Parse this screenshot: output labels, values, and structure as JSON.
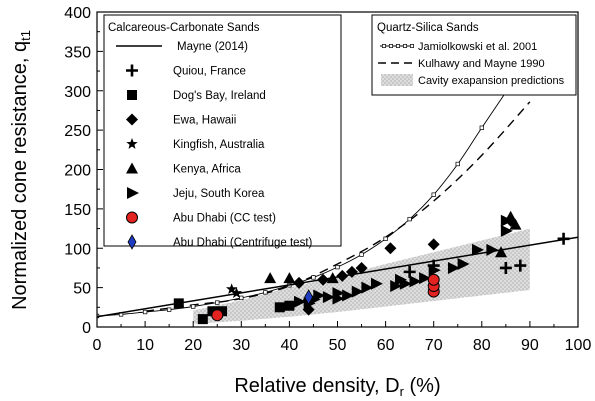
{
  "chart_data": {
    "type": "scatter",
    "xlabel": "Relative density, D",
    "xlabel_sub": "r",
    "xlabel_unit": " (%)",
    "ylabel": "Normalized cone resistance, q",
    "ylabel_sub": "t1",
    "xlim": [
      0,
      100
    ],
    "ylim": [
      0,
      400
    ],
    "xticks": [
      0,
      10,
      20,
      30,
      40,
      50,
      60,
      70,
      80,
      90,
      100
    ],
    "yticks": [
      0,
      50,
      100,
      150,
      200,
      250,
      300,
      350,
      400
    ],
    "legend_left": {
      "title": "Calcareous-Carbonate Sands",
      "entries": [
        {
          "key": "mayne",
          "label": "Mayne (2014)"
        },
        {
          "key": "quiou",
          "label": "Quiou, France"
        },
        {
          "key": "dogs_bay",
          "label": "Dog's Bay, Ireland"
        },
        {
          "key": "ewa",
          "label": "Ewa, Hawaii"
        },
        {
          "key": "kingfish",
          "label": "Kingfish, Australia"
        },
        {
          "key": "kenya",
          "label": "Kenya, Africa"
        },
        {
          "key": "jeju",
          "label": "Jeju, South Korea"
        },
        {
          "key": "abu_cc",
          "label": "Abu Dhabi (CC test)"
        },
        {
          "key": "abu_cent",
          "label": "Abu Dhabi (Centrifuge test)"
        }
      ]
    },
    "legend_right": {
      "title": "Quartz-Silica Sands",
      "entries": [
        {
          "key": "jamiolkowski",
          "label": "Jamiolkowski et al. 2001"
        },
        {
          "key": "kulhawy",
          "label": "Kulhawy and Mayne 1990"
        },
        {
          "key": "cavity",
          "label": "Cavity exapansion predictions"
        }
      ]
    },
    "curves": {
      "mayne": {
        "x": [
          0,
          100
        ],
        "y": [
          13,
          114
        ]
      },
      "jamiolkowski": {
        "x": [
          0,
          5,
          10,
          15,
          20,
          25,
          30,
          35,
          40,
          45,
          50,
          55,
          60,
          65,
          70,
          75,
          80,
          85
        ],
        "y": [
          14,
          16,
          19,
          22,
          26,
          31,
          37,
          44,
          53,
          63,
          76,
          92,
          112,
          137,
          168,
          207,
          253,
          298
        ]
      },
      "kulhawy": {
        "x": [
          10,
          20,
          30,
          40,
          50,
          60,
          70,
          80,
          90
        ],
        "y": [
          20,
          28,
          36,
          52,
          80,
          114,
          160,
          218,
          286
        ]
      },
      "cavity_band": {
        "x": [
          20,
          30,
          40,
          50,
          60,
          70,
          80,
          90
        ],
        "upper": [
          21,
          34,
          50,
          64,
          80,
          95,
          110,
          125
        ],
        "lower": [
          4,
          8,
          13,
          19,
          26,
          33,
          40,
          47
        ]
      }
    },
    "series": [
      {
        "key": "quiou",
        "name": "Quiou, France",
        "marker": "plus",
        "color": "#000000",
        "points": [
          [
            70,
            78
          ],
          [
            85,
            75
          ],
          [
            88,
            78
          ],
          [
            97,
            112
          ],
          [
            65,
            70
          ]
        ]
      },
      {
        "key": "dogs_bay",
        "name": "Dog's Bay, Ireland",
        "marker": "square",
        "color": "#000000",
        "points": [
          [
            17,
            30
          ],
          [
            22,
            10
          ],
          [
            24,
            20
          ],
          [
            26,
            20
          ],
          [
            38,
            25
          ],
          [
            40,
            27
          ]
        ]
      },
      {
        "key": "ewa",
        "name": "Ewa, Hawaii",
        "marker": "diamond",
        "color": "#000000",
        "points": [
          [
            42,
            56
          ],
          [
            47,
            60
          ],
          [
            51,
            65
          ],
          [
            53,
            70
          ],
          [
            55,
            75
          ],
          [
            61,
            100
          ],
          [
            70,
            105
          ],
          [
            86,
            135
          ],
          [
            44,
            22
          ]
        ]
      },
      {
        "key": "kingfish",
        "name": "Kingfish, Australia",
        "marker": "star",
        "color": "#000000",
        "points": [
          [
            28,
            48
          ],
          [
            29,
            43
          ]
        ]
      },
      {
        "key": "kenya",
        "name": "Kenya, Africa",
        "marker": "triangle",
        "color": "#000000",
        "points": [
          [
            36,
            62
          ],
          [
            40,
            62
          ],
          [
            44,
            40
          ],
          [
            49,
            62
          ],
          [
            84,
            95
          ],
          [
            86,
            140
          ],
          [
            87,
            130
          ]
        ]
      },
      {
        "key": "jeju",
        "name": "Jeju, South Korea",
        "marker": "triangle-right",
        "color": "#000000",
        "points": [
          [
            42,
            32
          ],
          [
            44,
            30
          ],
          [
            45,
            35
          ],
          [
            46,
            40
          ],
          [
            48,
            38
          ],
          [
            50,
            36
          ],
          [
            50,
            43
          ],
          [
            52,
            40
          ],
          [
            54,
            45
          ],
          [
            56,
            50
          ],
          [
            58,
            55
          ],
          [
            62,
            52
          ],
          [
            64,
            55
          ],
          [
            66,
            58
          ],
          [
            68,
            62
          ],
          [
            70,
            72
          ],
          [
            74,
            75
          ],
          [
            76,
            80
          ],
          [
            79,
            98
          ],
          [
            82,
            98
          ],
          [
            85,
            122
          ],
          [
            85,
            135
          ],
          [
            63,
            60
          ]
        ]
      },
      {
        "key": "abu_cc",
        "name": "Abu Dhabi (CC test)",
        "marker": "circle",
        "color": "#e3231f",
        "points": [
          [
            25,
            15
          ],
          [
            70,
            45
          ],
          [
            70,
            52
          ],
          [
            70,
            60
          ]
        ]
      },
      {
        "key": "abu_cent",
        "name": "Abu Dhabi (Centrifuge test)",
        "marker": "thin-diamond",
        "color": "#1f3bbf",
        "points": [
          [
            44,
            38
          ]
        ]
      }
    ]
  }
}
